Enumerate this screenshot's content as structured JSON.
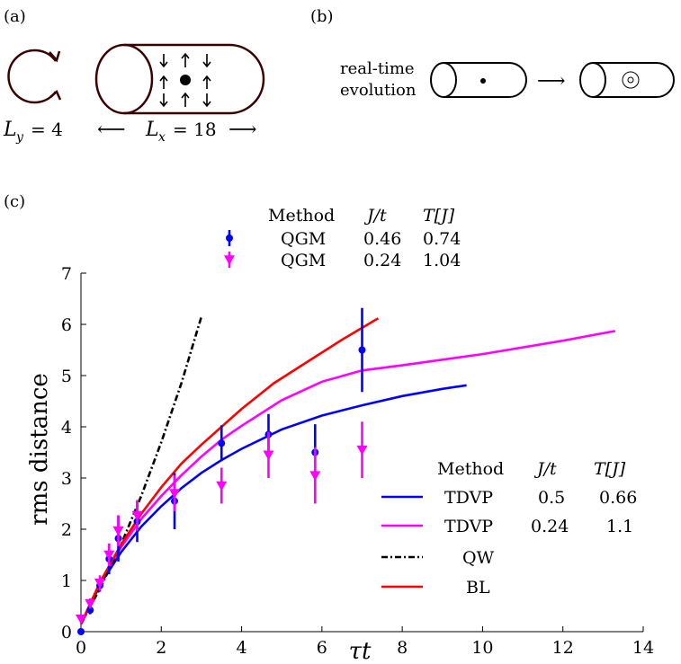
{
  "panel_a": {
    "label": "(a)",
    "ly_label": "L",
    "ly_sub": "y",
    "ly_value": "= 4",
    "lx_label": "L",
    "lx_sub": "x",
    "lx_value": "= 18",
    "arrow_left": "⟵",
    "arrow_right": "⟶"
  },
  "panel_b": {
    "label": "(b)",
    "line1": "real-time",
    "line2": "evolution",
    "arrow": "⟶"
  },
  "panel_c": {
    "label": "(c)"
  },
  "colors": {
    "tube": "#3a0000",
    "blue": "#0000ff",
    "magenta": "#ff00ff",
    "red": "#ff0000",
    "black": "#000000"
  },
  "top_legend": {
    "headers": [
      "Method",
      "J/t",
      "T[J]"
    ],
    "rows": [
      {
        "method": "QGM",
        "jt": "0.46",
        "tj": "0.74",
        "color": "#0000ff",
        "marker": "dot"
      },
      {
        "method": "QGM",
        "jt": "0.24",
        "tj": "1.04",
        "color": "#ff00ff",
        "marker": "triangle"
      }
    ]
  },
  "inner_legend": {
    "headers": [
      "Method",
      "J/t",
      "T[J]"
    ],
    "rows": [
      {
        "method": "TDVP",
        "jt": "0.5",
        "tj": "0.66",
        "color": "#0000ff",
        "style": "solid"
      },
      {
        "method": "TDVP",
        "jt": "0.24",
        "tj": "1.1",
        "color": "#ff00ff",
        "style": "solid"
      },
      {
        "method": "QW",
        "jt": "",
        "tj": "",
        "color": "#000000",
        "style": "dashdot"
      },
      {
        "method": "BL",
        "jt": "",
        "tj": "",
        "color": "#ff0000",
        "style": "solid"
      }
    ]
  },
  "chart_data": {
    "type": "line",
    "xlabel": "τt",
    "ylabel": "rms distance",
    "xlim": [
      0,
      14
    ],
    "ylim": [
      0,
      7
    ],
    "xticks": [
      0,
      2,
      4,
      6,
      8,
      10,
      12,
      14
    ],
    "yticks": [
      0,
      1,
      2,
      3,
      4,
      5,
      6,
      7
    ],
    "series": [
      {
        "name": "TDVP J/t=0.5 T[J]=0.66",
        "kind": "line",
        "color": "#0000ff",
        "x": [
          0,
          0.25,
          0.5,
          1.0,
          1.5,
          2.0,
          2.5,
          3.0,
          3.5,
          4.0,
          5.0,
          6.0,
          7.0,
          8.0,
          9.0,
          9.6
        ],
        "y": [
          0.15,
          0.55,
          0.95,
          1.55,
          2.05,
          2.45,
          2.8,
          3.1,
          3.35,
          3.57,
          3.95,
          4.22,
          4.42,
          4.6,
          4.74,
          4.81
        ]
      },
      {
        "name": "TDVP J/t=0.24 T[J]=1.1",
        "kind": "line",
        "color": "#ff00ff",
        "x": [
          0,
          0.25,
          0.5,
          1.0,
          1.5,
          2.0,
          2.5,
          3.0,
          3.5,
          4.0,
          5.0,
          6.0,
          7.0,
          8.0,
          10.0,
          12.0,
          13.3
        ],
        "y": [
          0.15,
          0.58,
          1.0,
          1.65,
          2.2,
          2.65,
          3.05,
          3.42,
          3.75,
          4.02,
          4.52,
          4.88,
          5.1,
          5.2,
          5.42,
          5.68,
          5.87
        ]
      },
      {
        "name": "QW",
        "kind": "line",
        "color": "#000000",
        "dash": "dashdot",
        "x": [
          0,
          0.5,
          1.0,
          1.5,
          2.0,
          2.5,
          3.0
        ],
        "y": [
          0.15,
          0.88,
          1.7,
          2.65,
          3.7,
          4.85,
          6.15
        ]
      },
      {
        "name": "BL",
        "kind": "line",
        "color": "#ff0000",
        "x": [
          0,
          0.25,
          0.5,
          1.0,
          1.5,
          2.0,
          2.5,
          3.0,
          3.5,
          4.0,
          4.8,
          5.5,
          6.5,
          7.4
        ],
        "y": [
          0.15,
          0.58,
          1.0,
          1.7,
          2.3,
          2.82,
          3.28,
          3.65,
          4.0,
          4.35,
          4.85,
          5.2,
          5.7,
          6.12
        ]
      },
      {
        "name": "QGM J/t=0.46 T[J]=0.74",
        "kind": "errorbar",
        "marker": "dot",
        "color": "#0000ff",
        "x": [
          0,
          0.23,
          0.47,
          0.7,
          0.93,
          1.4,
          2.33,
          3.5,
          4.67,
          5.83,
          7.0
        ],
        "y": [
          0.0,
          0.42,
          0.9,
          1.42,
          1.82,
          2.15,
          2.55,
          3.68,
          3.85,
          3.5,
          5.5
        ],
        "err": [
          0.05,
          0.08,
          0.12,
          0.3,
          0.45,
          0.4,
          0.55,
          0.35,
          0.4,
          0.55,
          0.82
        ]
      },
      {
        "name": "QGM J/t=0.24 T[J]=1.04",
        "kind": "errorbar",
        "marker": "triangle",
        "color": "#ff00ff",
        "x": [
          0,
          0.23,
          0.47,
          0.7,
          0.93,
          1.4,
          2.33,
          3.5,
          4.67,
          5.83,
          7.0
        ],
        "y": [
          0.25,
          0.55,
          0.95,
          1.5,
          1.97,
          2.27,
          2.7,
          2.85,
          3.45,
          3.05,
          3.55
        ],
        "err": [
          0.05,
          0.1,
          0.15,
          0.22,
          0.3,
          0.3,
          0.35,
          0.35,
          0.45,
          0.55,
          0.55
        ]
      }
    ]
  }
}
